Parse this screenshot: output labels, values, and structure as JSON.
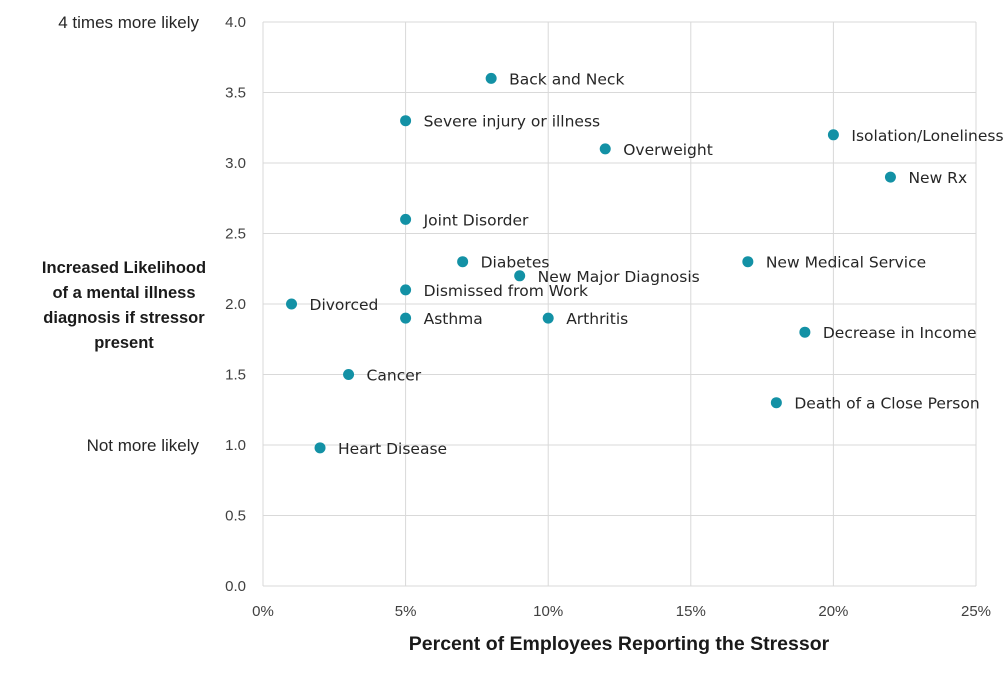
{
  "chart_data": {
    "type": "scatter",
    "xlabel": "Percent of Employees Reporting the Stressor",
    "ylabel_lines": [
      "Increased Likelihood",
      "of a mental illness",
      "diagnosis if stressor",
      "present"
    ],
    "xlim": [
      0,
      25
    ],
    "ylim": [
      0,
      4
    ],
    "x_ticks": [
      {
        "value": 0,
        "label": "0%"
      },
      {
        "value": 5,
        "label": "5%"
      },
      {
        "value": 10,
        "label": "10%"
      },
      {
        "value": 15,
        "label": "15%"
      },
      {
        "value": 20,
        "label": "20%"
      },
      {
        "value": 25,
        "label": "25%"
      }
    ],
    "y_ticks": [
      {
        "value": 0,
        "label": "0.0"
      },
      {
        "value": 0.5,
        "label": "0.5"
      },
      {
        "value": 1,
        "label": "1.0"
      },
      {
        "value": 1.5,
        "label": "1.5"
      },
      {
        "value": 2,
        "label": "2.0"
      },
      {
        "value": 2.5,
        "label": "2.5"
      },
      {
        "value": 3,
        "label": "3.0"
      },
      {
        "value": 3.5,
        "label": "3.5"
      },
      {
        "value": 4,
        "label": "4.0"
      }
    ],
    "y_annotations": [
      {
        "value": 4,
        "text": "4 times more likely"
      },
      {
        "value": 1,
        "text": "Not more likely"
      }
    ],
    "grid": true,
    "marker_color": "#1391a5",
    "points": [
      {
        "label": "Back and Neck",
        "x": 8,
        "y": 3.6
      },
      {
        "label": "Severe injury or illness",
        "x": 5,
        "y": 3.3
      },
      {
        "label": "Isolation/Loneliness",
        "x": 20,
        "y": 3.2
      },
      {
        "label": "Overweight",
        "x": 12,
        "y": 3.1
      },
      {
        "label": "New Rx",
        "x": 22,
        "y": 2.9
      },
      {
        "label": "Joint Disorder",
        "x": 5,
        "y": 2.6
      },
      {
        "label": "Diabetes",
        "x": 7,
        "y": 2.3
      },
      {
        "label": "New Medical Service",
        "x": 17,
        "y": 2.3
      },
      {
        "label": "New Major Diagnosis",
        "x": 9,
        "y": 2.2
      },
      {
        "label": "Dismissed from Work",
        "x": 5,
        "y": 2.1
      },
      {
        "label": "Divorced",
        "x": 1,
        "y": 2.0
      },
      {
        "label": "Asthma",
        "x": 5,
        "y": 1.9
      },
      {
        "label": "Arthritis",
        "x": 10,
        "y": 1.9
      },
      {
        "label": "Decrease in Income",
        "x": 19,
        "y": 1.8
      },
      {
        "label": "Cancer",
        "x": 3,
        "y": 1.5
      },
      {
        "label": "Death of a Close Person",
        "x": 18,
        "y": 1.3
      },
      {
        "label": "Heart Disease",
        "x": 2,
        "y": 0.98
      }
    ]
  }
}
